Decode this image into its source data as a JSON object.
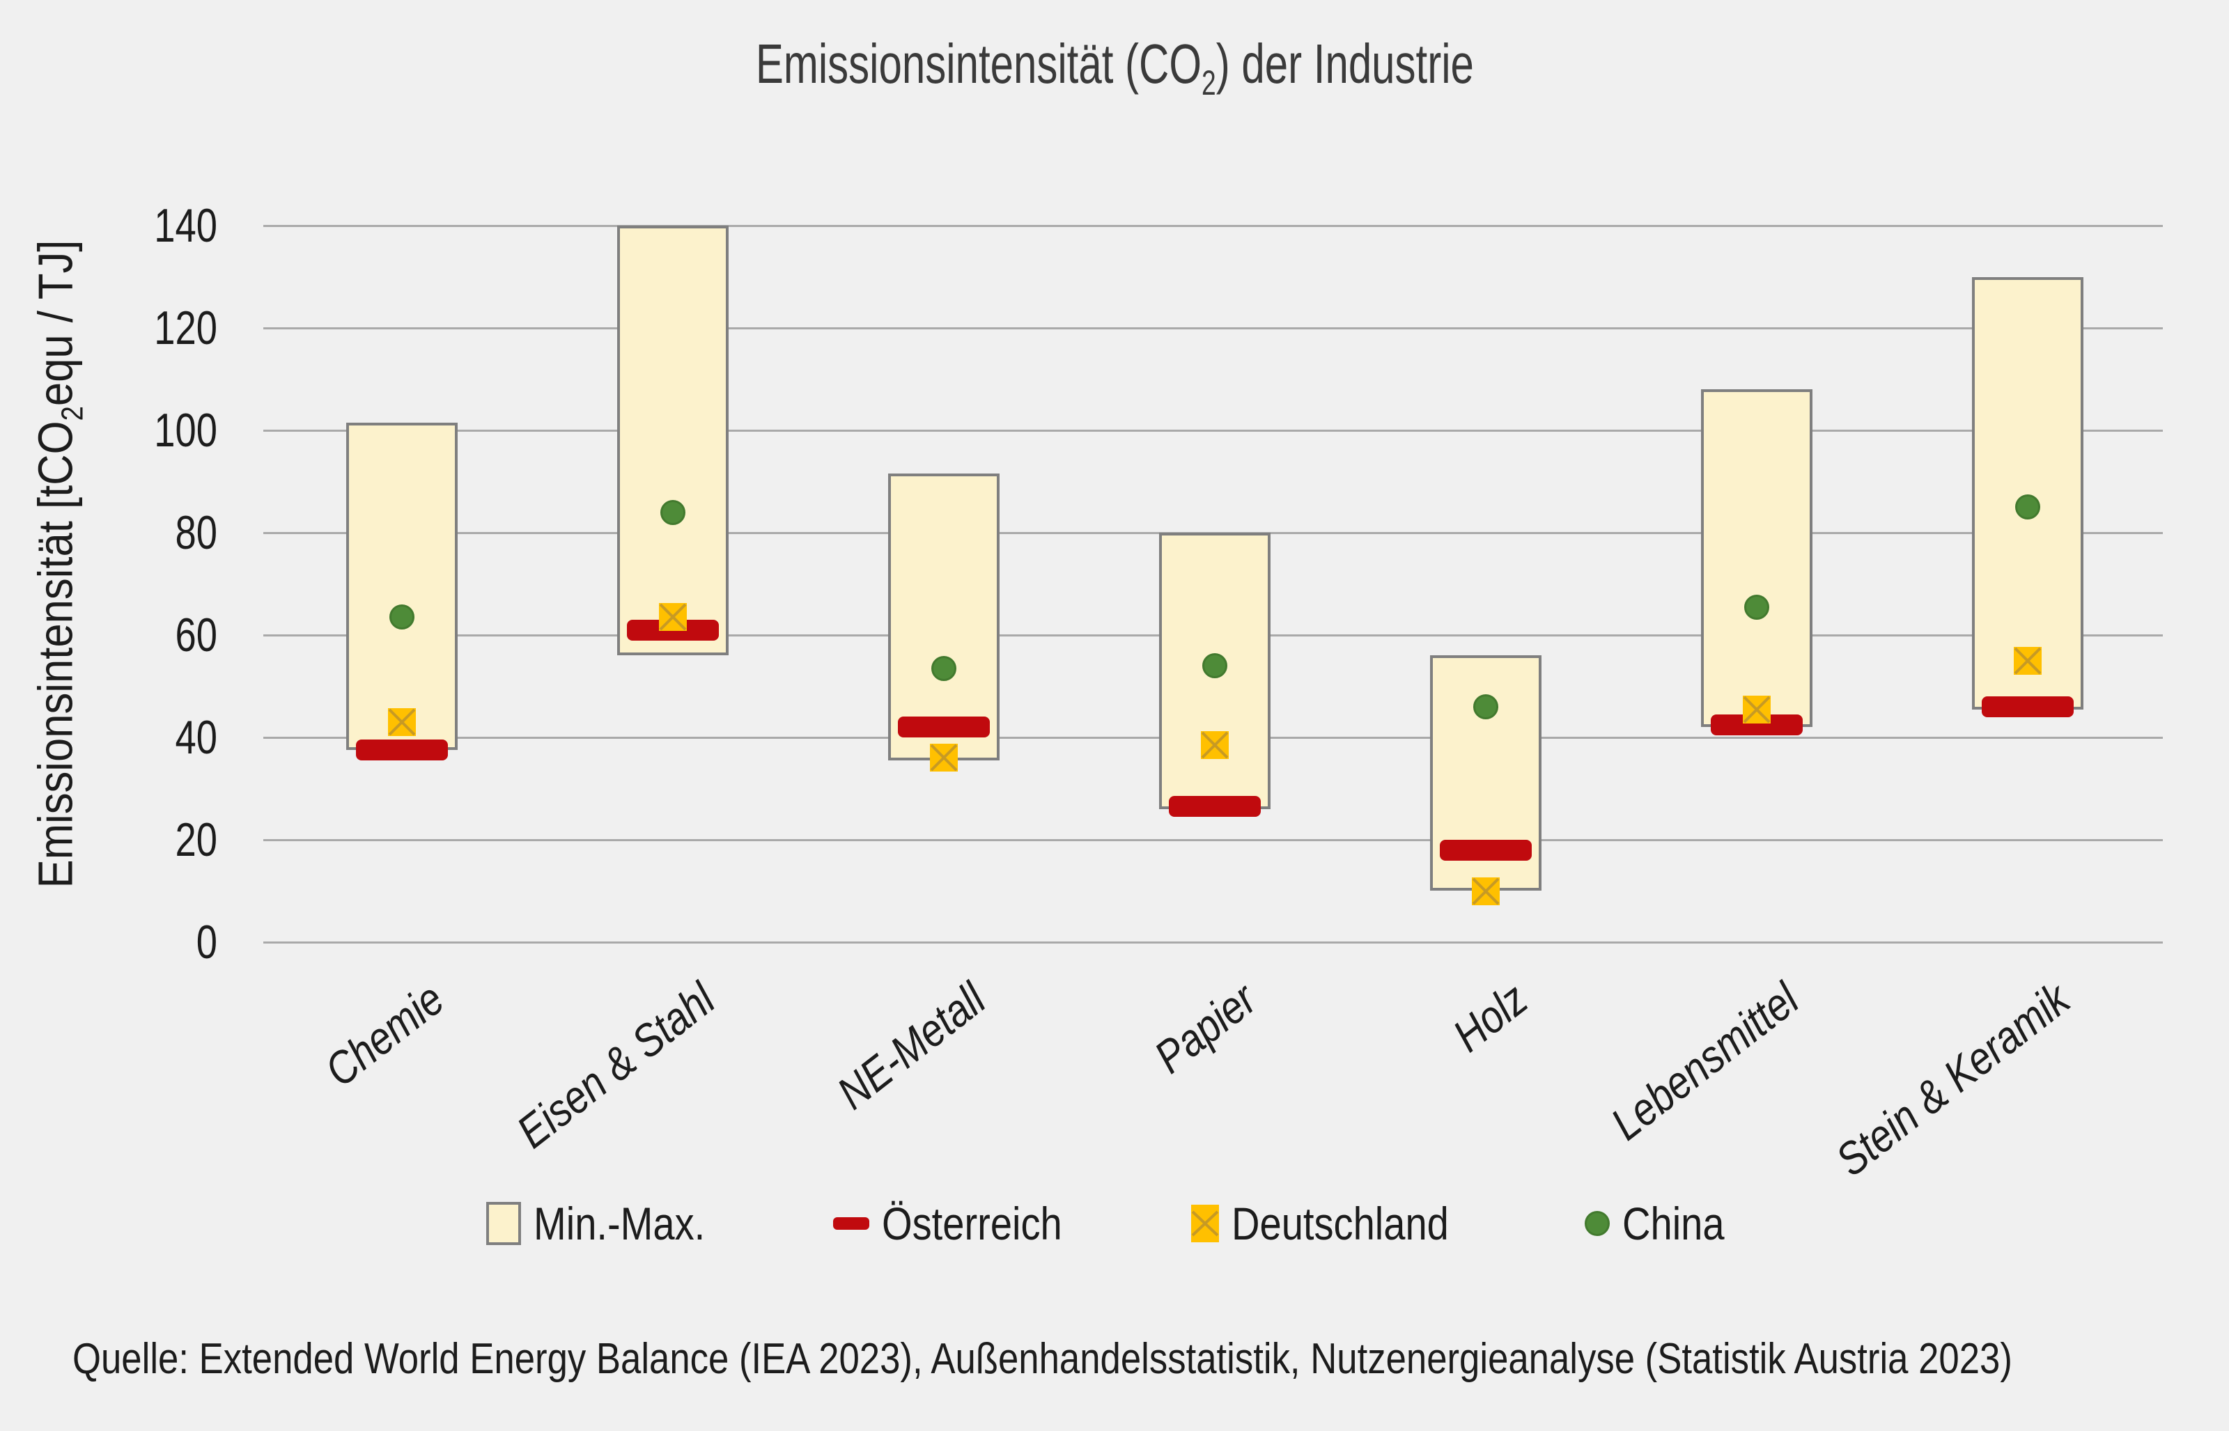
{
  "title": {
    "text_pre": "Emissionsintensität (CO",
    "text_sub": "2",
    "text_post": ") der Industrie"
  },
  "y_axis": {
    "label_pre": "Emissionsintensität [tCO",
    "label_sub": "2",
    "label_post": "equ / TJ]"
  },
  "source_line": "Quelle: Extended World Energy Balance (IEA 2023), Außenhandelsstatistik, Nutzenergieanalyse (Statistik Austria 2023)",
  "chart_data": {
    "type": "bar",
    "subtype": "floating-range-bars-with-markers",
    "title": "Emissionsintensität (CO2) der Industrie",
    "ylabel": "Emissionsintensität [tCO2equ / TJ]",
    "categories": [
      "Chemie",
      "Eisen & Stahl",
      "NE-Metall",
      "Papier",
      "Holz",
      "Lebensmittel",
      "Stein & Keramik"
    ],
    "series": [
      {
        "name": "Min.-Max.",
        "type": "range",
        "min": [
          37.5,
          56,
          35.5,
          26,
          10,
          42,
          45.5
        ],
        "max": [
          101.5,
          140,
          91.5,
          80,
          56,
          108,
          130
        ]
      },
      {
        "name": "Österreich",
        "type": "dash",
        "values": [
          37.5,
          61,
          42,
          26.5,
          18,
          42.5,
          46
        ]
      },
      {
        "name": "Deutschland",
        "type": "x-square",
        "values": [
          43,
          63.5,
          36,
          38.5,
          10,
          45.5,
          55
        ]
      },
      {
        "name": "China",
        "type": "dot",
        "values": [
          63.5,
          84,
          53.5,
          54,
          46,
          65.5,
          85
        ]
      }
    ],
    "ylim": [
      0,
      140
    ],
    "ytick_step": 20,
    "grid": "horizontal",
    "legend_position": "bottom",
    "colors": {
      "background": "#f0f0f0",
      "gridline": "#a9a9a9",
      "range_fill": "#fcf2cc",
      "range_border": "#7f7f7f",
      "austria_red": "#c00a0e",
      "germany_yellow": "#ffc000",
      "germany_x_stroke": "#c79a24",
      "china_green": "#4e8b38"
    }
  }
}
